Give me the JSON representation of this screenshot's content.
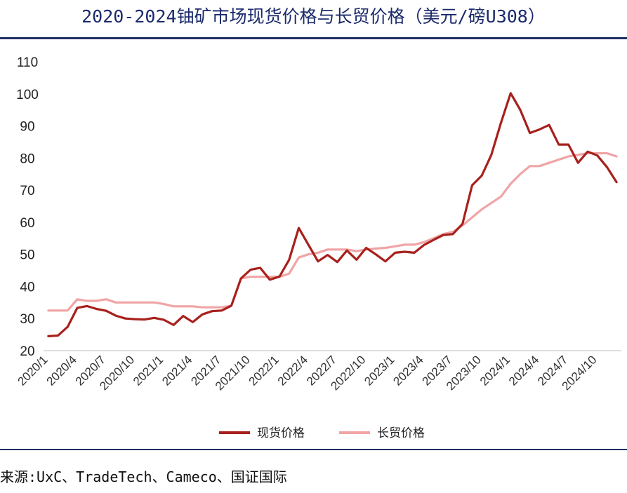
{
  "title": "2020-2024铀矿市场现货价格与长贸价格（美元/磅U308）",
  "source": "来源:UxC、TradeTech、Cameco、国证国际",
  "colors": {
    "spot": "#a8201c",
    "longterm": "#f0a4a6",
    "rule": "#1f2f63",
    "title": "#1b2a6b"
  },
  "chart_data": {
    "type": "line",
    "title": "2020-2024铀矿市场现货价格与长贸价格（美元/磅U308）",
    "xlabel": "",
    "ylabel": "",
    "ylim": [
      20,
      110
    ],
    "yticks": [
      20,
      30,
      40,
      50,
      60,
      70,
      80,
      90,
      100,
      110
    ],
    "grid": false,
    "legend": "bottom",
    "x": [
      "2020/1",
      "2020/2",
      "2020/3",
      "2020/4",
      "2020/5",
      "2020/6",
      "2020/7",
      "2020/8",
      "2020/9",
      "2020/10",
      "2020/11",
      "2020/12",
      "2021/1",
      "2021/2",
      "2021/3",
      "2021/4",
      "2021/5",
      "2021/6",
      "2021/7",
      "2021/8",
      "2021/9",
      "2021/10",
      "2021/11",
      "2021/12",
      "2022/1",
      "2022/2",
      "2022/3",
      "2022/4",
      "2022/5",
      "2022/6",
      "2022/7",
      "2022/8",
      "2022/9",
      "2022/10",
      "2022/11",
      "2022/12",
      "2023/1",
      "2023/2",
      "2023/3",
      "2023/4",
      "2023/5",
      "2023/6",
      "2023/7",
      "2023/8",
      "2023/9",
      "2023/10",
      "2023/11",
      "2023/12",
      "2024/1",
      "2024/2",
      "2024/3",
      "2024/4",
      "2024/5",
      "2024/6",
      "2024/7",
      "2024/8",
      "2024/9",
      "2024/10",
      "2024/11",
      "2024/12"
    ],
    "xtick_labels": [
      "2020/1",
      "2020/4",
      "2020/7",
      "2020/10",
      "2021/1",
      "2021/4",
      "2021/7",
      "2021/10",
      "2022/1",
      "2022/4",
      "2022/7",
      "2022/10",
      "2023/1",
      "2023/4",
      "2023/7",
      "2023/10",
      "2024/1",
      "2024/4",
      "2024/7",
      "2024/10"
    ],
    "series": [
      {
        "name": "现货价格",
        "color": "#a8201c",
        "values": [
          24.5,
          24.7,
          27.4,
          33.3,
          33.9,
          33.0,
          32.4,
          30.9,
          30.0,
          29.8,
          29.7,
          30.2,
          29.6,
          28.0,
          30.8,
          28.9,
          31.3,
          32.3,
          32.5,
          34.0,
          42.5,
          45.2,
          45.8,
          42.1,
          43.1,
          48.3,
          58.2,
          53.0,
          47.8,
          49.8,
          47.6,
          51.2,
          48.3,
          52.0,
          50.0,
          47.8,
          50.5,
          50.8,
          50.5,
          52.9,
          54.5,
          56.0,
          56.3,
          59.5,
          71.5,
          74.5,
          81.0,
          91.0,
          100.2,
          95.0,
          87.8,
          88.9,
          90.3,
          84.2,
          84.2,
          78.5,
          82.0,
          80.8,
          77.2,
          72.5
        ]
      },
      {
        "name": "长贸价格",
        "color": "#f0a4a6",
        "values": [
          32.5,
          32.5,
          32.5,
          36.0,
          35.5,
          35.5,
          36.0,
          35.0,
          35.0,
          35.0,
          35.0,
          35.0,
          34.5,
          33.8,
          33.8,
          33.8,
          33.5,
          33.5,
          33.5,
          34.0,
          42.5,
          43.0,
          43.0,
          43.0,
          43.0,
          44.0,
          49.0,
          50.0,
          50.5,
          51.5,
          51.5,
          51.5,
          51.0,
          51.5,
          51.8,
          52.0,
          52.5,
          53.0,
          53.0,
          53.8,
          55.0,
          56.3,
          57.0,
          59.0,
          61.5,
          64.0,
          66.0,
          68.0,
          72.0,
          75.0,
          77.5,
          77.5,
          78.5,
          79.5,
          80.5,
          81.0,
          81.5,
          81.5,
          81.5,
          80.5
        ]
      }
    ]
  }
}
